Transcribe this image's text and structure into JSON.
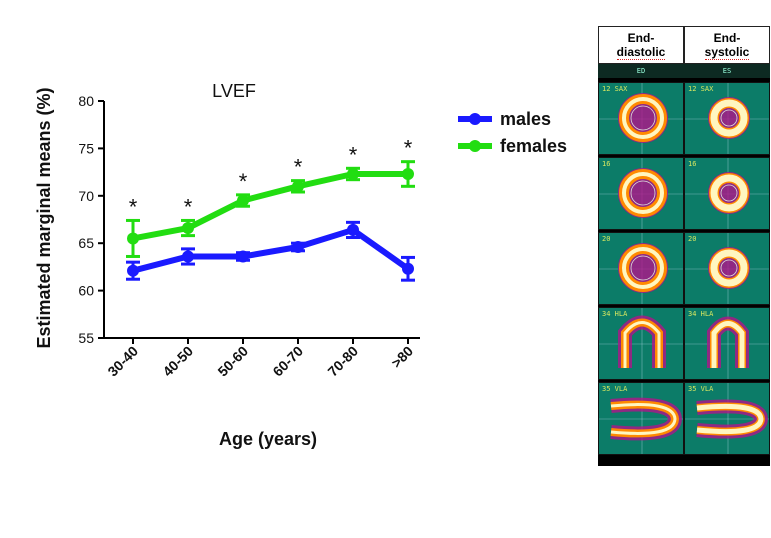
{
  "chart_data": {
    "type": "line",
    "title": "LVEF",
    "xlabel": "Age (years)",
    "ylabel": "Estimated marginal means (%)",
    "categories": [
      "30-40",
      "40-50",
      "50-60",
      "60-70",
      "70-80",
      ">80"
    ],
    "ylim": [
      55,
      80
    ],
    "yticks": [
      55,
      60,
      65,
      70,
      75,
      80
    ],
    "legend": "top-right",
    "grid": false,
    "series": [
      {
        "name": "males",
        "color": "#1a1aff",
        "values": [
          62.1,
          63.6,
          63.6,
          64.6,
          66.4,
          62.3
        ],
        "errors": [
          0.9,
          0.8,
          0.4,
          0.4,
          0.8,
          1.2
        ]
      },
      {
        "name": "females",
        "color": "#22dd11",
        "values": [
          65.5,
          66.6,
          69.5,
          71.0,
          72.3,
          72.3
        ],
        "errors": [
          1.9,
          0.8,
          0.6,
          0.6,
          0.6,
          1.3
        ]
      }
    ],
    "annotations": [
      "*",
      "*",
      "*",
      "*",
      "*",
      "*"
    ]
  },
  "spect_panel": {
    "headers": [
      "End-\ndiastolic",
      "End-\nsystolic"
    ],
    "subheaders": [
      "ED",
      "ES"
    ],
    "rows": [
      {
        "label_left": "12 SAX",
        "label_right": "12 SAX"
      },
      {
        "label_left": "16",
        "label_right": "16"
      },
      {
        "label_left": "20",
        "label_right": "20"
      },
      {
        "label_left": "34 HLA",
        "label_right": "34 HLA"
      },
      {
        "label_left": "35 VLA",
        "label_right": "35 VLA"
      }
    ],
    "colors": {
      "background": "#0c7c68",
      "hot": "#fff6c0",
      "warm": "#ff8a00",
      "cool": "#b0148a"
    }
  }
}
